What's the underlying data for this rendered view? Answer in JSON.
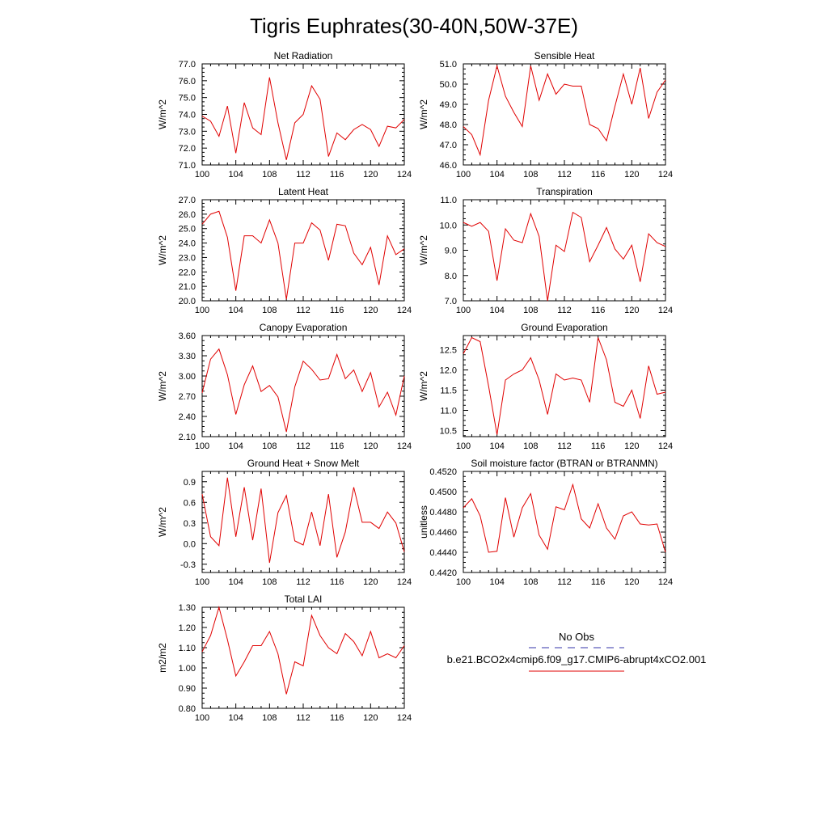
{
  "figure_title": "Tigris Euphrates(30-40N,50W-37E)",
  "legend": {
    "entries": [
      {
        "label": "No Obs",
        "color": "#3333aa",
        "style": "dashed"
      },
      {
        "label": "b.e21.BCO2x4cmip6.f09_g17.CMIP6-abrupt4xCO2.001",
        "color": "#e00000",
        "style": "solid"
      }
    ]
  },
  "chart_data": [
    {
      "type": "line",
      "title": "Net Radiation",
      "ylabel": "W/m^2",
      "xlim": [
        100,
        124
      ],
      "ylim": [
        71.0,
        77.0
      ],
      "x_ticks": [
        "100",
        "104",
        "108",
        "112",
        "116",
        "120",
        "124"
      ],
      "y_ticks": [
        "71.0",
        "72.0",
        "73.0",
        "74.0",
        "75.0",
        "76.0",
        "77.0"
      ],
      "series": [
        {
          "name": "b.e21.BCO2x4cmip6.f09_g17.CMIP6-abrupt4xCO2.001",
          "color": "#e00000",
          "values": [
            73.9,
            73.6,
            72.7,
            74.5,
            71.7,
            74.7,
            73.2,
            72.8,
            76.2,
            73.5,
            71.3,
            73.5,
            74.0,
            75.7,
            74.9,
            71.5,
            72.9,
            72.5,
            73.1,
            73.4,
            73.1,
            72.1,
            73.3,
            73.2,
            73.7
          ]
        }
      ]
    },
    {
      "type": "line",
      "title": "Sensible Heat",
      "ylabel": "W/m^2",
      "xlim": [
        100,
        124
      ],
      "ylim": [
        46.0,
        51.0
      ],
      "x_ticks": [
        "100",
        "104",
        "108",
        "112",
        "116",
        "120",
        "124"
      ],
      "y_ticks": [
        "46.0",
        "47.0",
        "48.0",
        "49.0",
        "50.0",
        "51.0"
      ],
      "series": [
        {
          "name": "b.e21.BCO2x4cmip6.f09_g17.CMIP6-abrupt4xCO2.001",
          "color": "#e00000",
          "values": [
            47.9,
            47.5,
            46.5,
            49.2,
            50.9,
            49.4,
            48.6,
            47.9,
            50.9,
            49.2,
            50.5,
            49.5,
            50.0,
            49.9,
            49.9,
            48.0,
            47.8,
            47.2,
            48.9,
            50.5,
            49.0,
            50.8,
            48.3,
            49.6,
            50.2
          ]
        }
      ]
    },
    {
      "type": "line",
      "title": "Latent Heat",
      "ylabel": "W/m^2",
      "xlim": [
        100,
        124
      ],
      "ylim": [
        20.0,
        27.0
      ],
      "x_ticks": [
        "100",
        "104",
        "108",
        "112",
        "116",
        "120",
        "124"
      ],
      "y_ticks": [
        "20.0",
        "21.0",
        "22.0",
        "23.0",
        "24.0",
        "25.0",
        "26.0",
        "27.0"
      ],
      "series": [
        {
          "name": "b.e21.BCO2x4cmip6.f09_g17.CMIP6-abrupt4xCO2.001",
          "color": "#e00000",
          "values": [
            25.3,
            26.0,
            26.2,
            24.4,
            20.7,
            24.5,
            24.5,
            24.0,
            25.6,
            24.0,
            20.1,
            24.0,
            24.0,
            25.4,
            24.9,
            22.8,
            25.3,
            25.2,
            23.3,
            22.5,
            23.7,
            21.1,
            24.5,
            23.2,
            23.6
          ]
        }
      ]
    },
    {
      "type": "line",
      "title": "Transpiration",
      "ylabel": "W/m^2",
      "xlim": [
        100,
        124
      ],
      "ylim": [
        7.0,
        11.0
      ],
      "x_ticks": [
        "100",
        "104",
        "108",
        "112",
        "116",
        "120",
        "124"
      ],
      "y_ticks": [
        "7.0",
        "8.0",
        "9.0",
        "10.0",
        "11.0"
      ],
      "series": [
        {
          "name": "b.e21.BCO2x4cmip6.f09_g17.CMIP6-abrupt4xCO2.001",
          "color": "#e00000",
          "values": [
            10.1,
            9.95,
            10.1,
            9.75,
            7.8,
            9.85,
            9.4,
            9.3,
            10.45,
            9.55,
            7.0,
            9.2,
            8.95,
            10.5,
            10.3,
            8.55,
            9.2,
            9.9,
            9.05,
            8.65,
            9.2,
            7.75,
            9.65,
            9.3,
            9.15
          ]
        }
      ]
    },
    {
      "type": "line",
      "title": "Canopy Evaporation",
      "ylabel": "W/m^2",
      "xlim": [
        100,
        124
      ],
      "ylim": [
        2.1,
        3.6
      ],
      "x_ticks": [
        "100",
        "104",
        "108",
        "112",
        "116",
        "120",
        "124"
      ],
      "y_ticks": [
        "2.10",
        "2.40",
        "2.70",
        "3.00",
        "3.30",
        "3.60"
      ],
      "series": [
        {
          "name": "b.e21.BCO2x4cmip6.f09_g17.CMIP6-abrupt4xCO2.001",
          "color": "#e00000",
          "values": [
            2.75,
            3.25,
            3.4,
            3.02,
            2.43,
            2.87,
            3.15,
            2.77,
            2.86,
            2.69,
            2.17,
            2.84,
            3.22,
            3.1,
            2.94,
            2.96,
            3.32,
            2.96,
            3.09,
            2.77,
            3.05,
            2.54,
            2.76,
            2.42,
            3.0
          ]
        }
      ]
    },
    {
      "type": "line",
      "title": "Ground Evaporation",
      "ylabel": "W/m^2",
      "xlim": [
        100,
        124
      ],
      "ylim": [
        10.35,
        12.85
      ],
      "x_ticks": [
        "100",
        "104",
        "108",
        "112",
        "116",
        "120",
        "124"
      ],
      "y_ticks": [
        "10.5",
        "11.0",
        "11.5",
        "12.0",
        "12.5"
      ],
      "series": [
        {
          "name": "b.e21.BCO2x4cmip6.f09_g17.CMIP6-abrupt4xCO2.001",
          "color": "#e00000",
          "values": [
            12.4,
            12.8,
            12.7,
            11.6,
            10.4,
            11.75,
            11.9,
            12.0,
            12.3,
            11.75,
            10.9,
            11.9,
            11.75,
            11.8,
            11.75,
            11.2,
            12.8,
            12.25,
            11.2,
            11.1,
            11.5,
            10.8,
            12.1,
            11.4,
            11.45
          ]
        }
      ]
    },
    {
      "type": "line",
      "title": "Ground Heat + Snow Melt",
      "ylabel": "W/m^2",
      "xlim": [
        100,
        124
      ],
      "ylim": [
        -0.42,
        1.05
      ],
      "x_ticks": [
        "100",
        "104",
        "108",
        "112",
        "116",
        "120",
        "124"
      ],
      "y_ticks": [
        "-0.3",
        "0.0",
        "0.3",
        "0.6",
        "0.9"
      ],
      "series": [
        {
          "name": "b.e21.BCO2x4cmip6.f09_g17.CMIP6-abrupt4xCO2.001",
          "color": "#e00000",
          "values": [
            0.72,
            0.1,
            -0.03,
            0.96,
            0.1,
            0.82,
            0.05,
            0.8,
            -0.28,
            0.45,
            0.7,
            0.04,
            -0.02,
            0.46,
            -0.03,
            0.72,
            -0.2,
            0.17,
            0.82,
            0.31,
            0.31,
            0.22,
            0.46,
            0.3,
            -0.12
          ]
        }
      ]
    },
    {
      "type": "line",
      "title": "Soil moisture factor (BTRAN or BTRANMN)",
      "ylabel": "unitless",
      "xlim": [
        100,
        124
      ],
      "ylim": [
        0.442,
        0.452
      ],
      "x_ticks": [
        "100",
        "104",
        "108",
        "112",
        "116",
        "120",
        "124"
      ],
      "y_ticks": [
        "0.4420",
        "0.4440",
        "0.4460",
        "0.4480",
        "0.4500",
        "0.4520"
      ],
      "series": [
        {
          "name": "b.e21.BCO2x4cmip6.f09_g17.CMIP6-abrupt4xCO2.001",
          "color": "#e00000",
          "values": [
            0.4484,
            0.4493,
            0.4476,
            0.444,
            0.4441,
            0.4494,
            0.4455,
            0.4484,
            0.4498,
            0.4457,
            0.4443,
            0.4485,
            0.4482,
            0.4507,
            0.4473,
            0.4464,
            0.4488,
            0.4464,
            0.4453,
            0.4476,
            0.448,
            0.4468,
            0.4467,
            0.4468,
            0.444
          ]
        }
      ]
    },
    {
      "type": "line",
      "title": "Total LAI",
      "ylabel": "m2/m2",
      "xlim": [
        100,
        124
      ],
      "ylim": [
        0.8,
        1.3
      ],
      "x_ticks": [
        "100",
        "104",
        "108",
        "112",
        "116",
        "120",
        "124"
      ],
      "y_ticks": [
        "0.80",
        "0.90",
        "1.00",
        "1.10",
        "1.20",
        "1.30"
      ],
      "series": [
        {
          "name": "b.e21.BCO2x4cmip6.f09_g17.CMIP6-abrupt4xCO2.001",
          "color": "#e00000",
          "values": [
            1.08,
            1.16,
            1.3,
            1.14,
            0.96,
            1.03,
            1.11,
            1.11,
            1.18,
            1.07,
            0.87,
            1.03,
            1.01,
            1.26,
            1.16,
            1.1,
            1.07,
            1.17,
            1.13,
            1.06,
            1.18,
            1.05,
            1.07,
            1.05,
            1.11
          ]
        }
      ]
    }
  ]
}
